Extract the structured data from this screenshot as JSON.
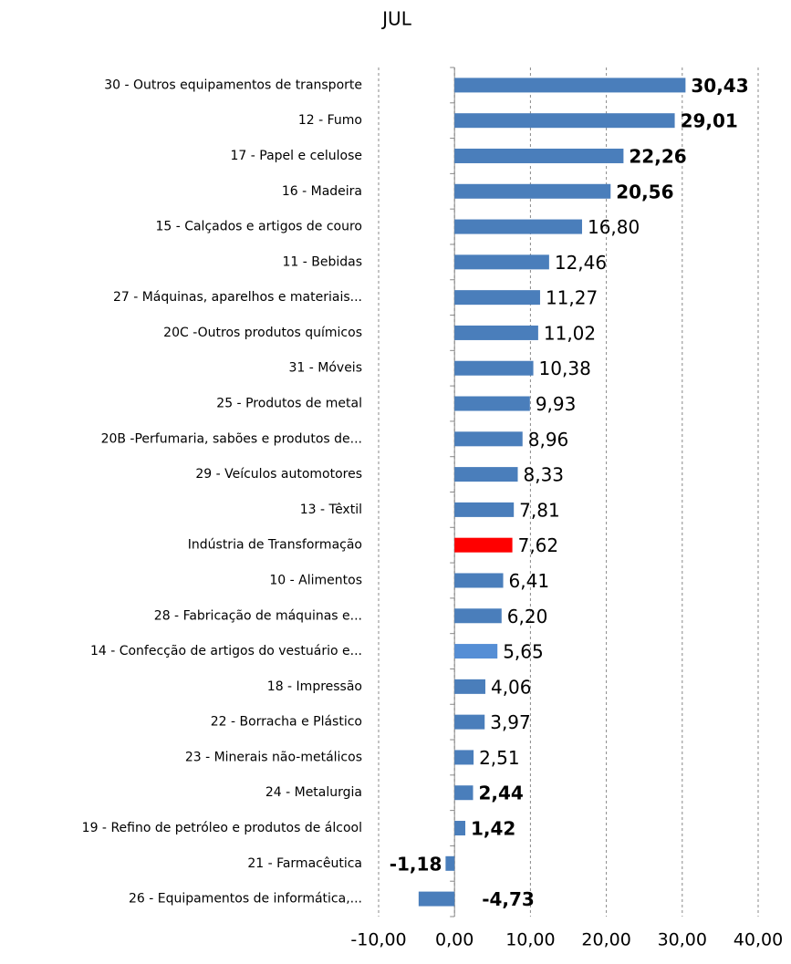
{
  "chart_data": {
    "type": "bar",
    "orientation": "horizontal",
    "title": "JUL",
    "categories": [
      "30 - Outros equipamentos de transporte",
      "12 - Fumo",
      "17 - Papel e celulose",
      "16 - Madeira",
      "15 - Calçados e artigos de couro",
      "11 - Bebidas",
      "27 - Máquinas, aparelhos e materiais...",
      "20C -Outros produtos químicos",
      "31 - Móveis",
      "25 - Produtos de metal",
      "20B -Perfumaria, sabões e produtos de...",
      "29 - Veículos automotores",
      "13 - Têxtil",
      "Indústria de Transformação",
      "10 - Alimentos",
      "28 - Fabricação de máquinas e...",
      "14 - Confecção de artigos do vestuário e...",
      "18 - Impressão",
      "22 - Borracha e Plástico",
      "23 - Minerais não-metálicos",
      "24 - Metalurgia",
      "19 - Refino de petróleo e produtos de álcool",
      "21 - Farmacêutica",
      "26 - Equipamentos de informática,..."
    ],
    "values": [
      30.43,
      29.01,
      22.26,
      20.56,
      16.8,
      12.46,
      11.27,
      11.02,
      10.38,
      9.93,
      8.96,
      8.33,
      7.81,
      7.62,
      6.41,
      6.2,
      5.65,
      4.06,
      3.97,
      2.51,
      2.44,
      1.42,
      -1.18,
      -4.73
    ],
    "value_labels": [
      "30,43",
      "29,01",
      "22,26",
      "20,56",
      "16,80",
      "12,46",
      "11,27",
      "11,02",
      "10,38",
      "9,93",
      "8,96",
      "8,33",
      "7,81",
      "7,62",
      "6,41",
      "6,20",
      "5,65",
      "4,06",
      "3,97",
      "2,51",
      "2,44",
      "1,42",
      "-1,18",
      "-4,73"
    ],
    "value_label_bold": [
      true,
      true,
      true,
      true,
      false,
      false,
      false,
      false,
      false,
      false,
      false,
      false,
      false,
      false,
      false,
      false,
      false,
      false,
      false,
      false,
      true,
      true,
      true,
      true
    ],
    "colors": [
      "#4a7ebb",
      "#4a7ebb",
      "#4a7ebb",
      "#4a7ebb",
      "#4a7ebb",
      "#4a7ebb",
      "#4a7ebb",
      "#4a7ebb",
      "#4a7ebb",
      "#4a7ebb",
      "#4a7ebb",
      "#4a7ebb",
      "#4a7ebb",
      "#ff0000",
      "#4a7ebb",
      "#4a7ebb",
      "#558ed5",
      "#4a7ebb",
      "#4a7ebb",
      "#4a7ebb",
      "#4a7ebb",
      "#4a7ebb",
      "#4a7ebb",
      "#4a7ebb"
    ],
    "xlim": [
      -10,
      40
    ],
    "xticks": [
      {
        "value": -10,
        "label": "-10,00"
      },
      {
        "value": 0,
        "label": "0,00"
      },
      {
        "value": 10,
        "label": "10,00"
      },
      {
        "value": 20,
        "label": "20,00"
      },
      {
        "value": 30,
        "label": "30,00"
      },
      {
        "value": 40,
        "label": "40,00"
      }
    ],
    "grid": true
  }
}
